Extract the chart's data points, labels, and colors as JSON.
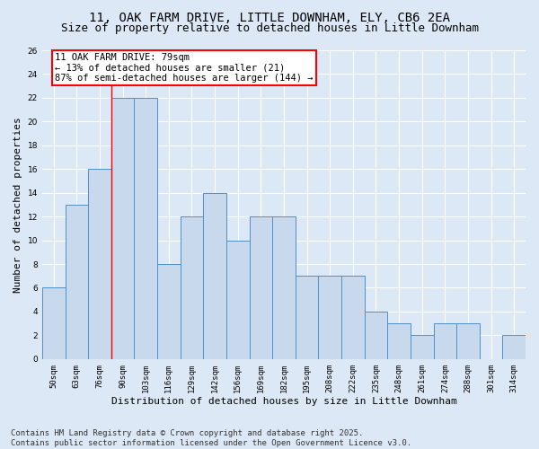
{
  "title_line1": "11, OAK FARM DRIVE, LITTLE DOWNHAM, ELY, CB6 2EA",
  "title_line2": "Size of property relative to detached houses in Little Downham",
  "xlabel": "Distribution of detached houses by size in Little Downham",
  "ylabel": "Number of detached properties",
  "categories": [
    "50sqm",
    "63sqm",
    "76sqm",
    "90sqm",
    "103sqm",
    "116sqm",
    "129sqm",
    "142sqm",
    "156sqm",
    "169sqm",
    "182sqm",
    "195sqm",
    "208sqm",
    "222sqm",
    "235sqm",
    "248sqm",
    "261sqm",
    "274sqm",
    "288sqm",
    "301sqm",
    "314sqm"
  ],
  "values": [
    6,
    13,
    16,
    22,
    22,
    8,
    12,
    14,
    10,
    12,
    12,
    7,
    7,
    7,
    4,
    3,
    2,
    3,
    3,
    0,
    2
  ],
  "bar_color": "#c8d9ed",
  "bar_edge_color": "#4f90c8",
  "red_line_index": 2,
  "annotation_text": "11 OAK FARM DRIVE: 79sqm\n← 13% of detached houses are smaller (21)\n87% of semi-detached houses are larger (144) →",
  "annotation_box_color": "white",
  "annotation_box_edge_color": "red",
  "ylim": [
    0,
    26
  ],
  "yticks": [
    0,
    2,
    4,
    6,
    8,
    10,
    12,
    14,
    16,
    18,
    20,
    22,
    24,
    26
  ],
  "footer_text": "Contains HM Land Registry data © Crown copyright and database right 2025.\nContains public sector information licensed under the Open Government Licence v3.0.",
  "background_color": "#dce8f5",
  "plot_background_color": "#dce8f5",
  "grid_color": "white",
  "title_fontsize": 10,
  "subtitle_fontsize": 9,
  "axis_label_fontsize": 8,
  "tick_fontsize": 6.5,
  "annotation_fontsize": 7.5,
  "footer_fontsize": 6.5
}
